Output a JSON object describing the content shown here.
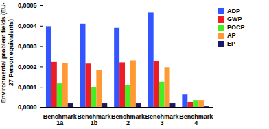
{
  "chart_data": {
    "type": "bar",
    "y_label": "Environmental problem fields (EU-27 Person equivalents)",
    "categories": [
      "Benchmark 1a",
      "Benchmark 1b",
      "Benchmark 2",
      "Benchmark 3",
      "Benchmark 4"
    ],
    "series": [
      {
        "name": "ADP",
        "color": "#3355ff",
        "values": [
          0.000398,
          0.00041,
          0.00039,
          0.000465,
          6.3e-05
        ]
      },
      {
        "name": "GWP",
        "color": "#ee1c25",
        "values": [
          0.000222,
          0.000214,
          0.00022,
          0.000228,
          2.5e-05
        ]
      },
      {
        "name": "POCP",
        "color": "#44ee22",
        "values": [
          0.000117,
          0.0001,
          0.000108,
          0.000125,
          3.3e-05
        ]
      },
      {
        "name": "AP",
        "color": "#ff9933",
        "values": [
          0.000215,
          0.000183,
          0.00023,
          0.000197,
          3.3e-05
        ]
      },
      {
        "name": "EP",
        "color": "#1a1a66",
        "values": [
          2e-05,
          2e-05,
          2e-05,
          2e-05,
          3e-06
        ]
      }
    ],
    "ylim": [
      0,
      0.0005
    ],
    "yticks": [
      {
        "value": 0,
        "label": "0,0000"
      },
      {
        "value": 0.0001,
        "label": "0,0001"
      },
      {
        "value": 0.0002,
        "label": "0,0002"
      },
      {
        "value": 0.0003,
        "label": "0,0003"
      },
      {
        "value": 0.0004,
        "label": "0,0004"
      },
      {
        "value": 0.0005,
        "label": "0,0005"
      }
    ],
    "grid": false,
    "legend": "right"
  }
}
